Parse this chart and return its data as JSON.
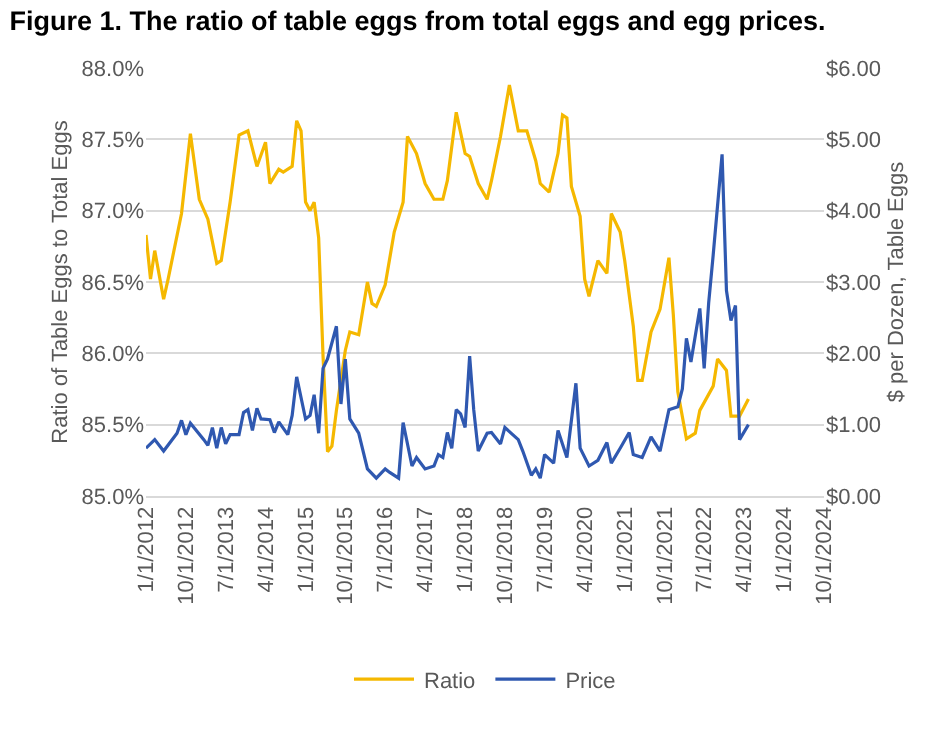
{
  "chart_data": {
    "type": "line",
    "title": "Figure 1. The ratio of table eggs from total eggs and egg prices.",
    "ylabel": "Ratio of Table Eggs to Total Eggs",
    "y2label": "$ per Dozen, Table Eggs",
    "xlim": [
      "2012-01-01",
      "2024-10-01"
    ],
    "xticks": [
      {
        "value": "2012-01-01",
        "label": "1/1/2012"
      },
      {
        "value": "2012-10-01",
        "label": "10/1/2012"
      },
      {
        "value": "2013-07-01",
        "label": "7/1/2013"
      },
      {
        "value": "2014-04-01",
        "label": "4/1/2014"
      },
      {
        "value": "2015-01-01",
        "label": "1/1/2015"
      },
      {
        "value": "2015-10-01",
        "label": "10/1/2015"
      },
      {
        "value": "2016-07-01",
        "label": "7/1/2016"
      },
      {
        "value": "2017-04-01",
        "label": "4/1/2017"
      },
      {
        "value": "2018-01-01",
        "label": "1/1/2018"
      },
      {
        "value": "2018-10-01",
        "label": "10/1/2018"
      },
      {
        "value": "2019-07-01",
        "label": "7/1/2019"
      },
      {
        "value": "2020-04-01",
        "label": "4/1/2020"
      },
      {
        "value": "2021-01-01",
        "label": "1/1/2021"
      },
      {
        "value": "2021-10-01",
        "label": "10/1/2021"
      },
      {
        "value": "2022-07-01",
        "label": "7/1/2022"
      },
      {
        "value": "2023-04-01",
        "label": "4/1/2023"
      },
      {
        "value": "2024-01-01",
        "label": "1/1/2024"
      },
      {
        "value": "2024-10-01",
        "label": "10/1/2024"
      }
    ],
    "ylim": [
      85,
      88
    ],
    "yticks": [
      {
        "value": 85,
        "label": "85.0%"
      },
      {
        "value": 85.5,
        "label": "85.5%"
      },
      {
        "value": 86,
        "label": "86.0%"
      },
      {
        "value": 86.5,
        "label": "86.5%"
      },
      {
        "value": 87,
        "label": "87.0%"
      },
      {
        "value": 87.5,
        "label": "87.5%"
      },
      {
        "value": 88,
        "label": "88.0%"
      }
    ],
    "y2lim": [
      0,
      6
    ],
    "y2ticks": [
      {
        "value": 0,
        "label": "$0.00"
      },
      {
        "value": 1,
        "label": "$1.00"
      },
      {
        "value": 2,
        "label": "$2.00"
      },
      {
        "value": 3,
        "label": "$3.00"
      },
      {
        "value": 4,
        "label": "$4.00"
      },
      {
        "value": 5,
        "label": "$5.00"
      },
      {
        "value": 6,
        "label": "$6.00"
      }
    ],
    "grid": "y",
    "legend": "bottom",
    "marker": "none",
    "line_style": "solid",
    "series": [
      {
        "name": "Ratio",
        "color": "#f5b800",
        "x": [
          "2012-01",
          "2012-02",
          "2012-03",
          "2012-05",
          "2012-06",
          "2012-09",
          "2012-11",
          "2013-01",
          "2013-03",
          "2013-05",
          "2013-06",
          "2013-08",
          "2013-10",
          "2013-12",
          "2014-02",
          "2014-04",
          "2014-05",
          "2014-07",
          "2014-08",
          "2014-10",
          "2014-11",
          "2014-12",
          "2015-01",
          "2015-02",
          "2015-03",
          "2015-04",
          "2015-05",
          "2015-06",
          "2015-07",
          "2015-08",
          "2015-10",
          "2015-11",
          "2016-01",
          "2016-03",
          "2016-04",
          "2016-05",
          "2016-07",
          "2016-09",
          "2016-11",
          "2016-12",
          "2017-02",
          "2017-04",
          "2017-06",
          "2017-08",
          "2017-09",
          "2017-11",
          "2018-01",
          "2018-02",
          "2018-04",
          "2018-06",
          "2018-07",
          "2018-09",
          "2018-11",
          "2019-01",
          "2019-03",
          "2019-05",
          "2019-06",
          "2019-08",
          "2019-10",
          "2019-11",
          "2019-12",
          "2020-01",
          "2020-03",
          "2020-04",
          "2020-05",
          "2020-07",
          "2020-09",
          "2020-10",
          "2020-12",
          "2021-01",
          "2021-03",
          "2021-04",
          "2021-05",
          "2021-07",
          "2021-09",
          "2021-11",
          "2021-12",
          "2022-01",
          "2022-03",
          "2022-05",
          "2022-06",
          "2022-09",
          "2022-10",
          "2022-12",
          "2023-01",
          "2023-03",
          "2023-05"
        ],
        "values": [
          86.83,
          86.52,
          86.72,
          86.38,
          86.52,
          86.98,
          87.54,
          87.08,
          86.94,
          86.63,
          86.65,
          87.06,
          87.53,
          87.56,
          87.31,
          87.48,
          87.19,
          87.29,
          87.27,
          87.31,
          87.63,
          87.56,
          87.06,
          87.0,
          87.06,
          86.81,
          85.98,
          85.31,
          85.35,
          85.6,
          86.02,
          86.15,
          86.13,
          86.5,
          86.35,
          86.33,
          86.48,
          86.85,
          87.06,
          87.52,
          87.4,
          87.19,
          87.08,
          87.08,
          87.21,
          87.69,
          87.4,
          87.38,
          87.19,
          87.08,
          87.21,
          87.52,
          87.88,
          87.56,
          87.56,
          87.35,
          87.19,
          87.13,
          87.4,
          87.67,
          87.65,
          87.17,
          86.96,
          86.52,
          86.4,
          86.65,
          86.56,
          86.98,
          86.85,
          86.65,
          86.19,
          85.81,
          85.81,
          86.15,
          86.31,
          86.67,
          86.27,
          85.73,
          85.4,
          85.44,
          85.6,
          85.77,
          85.96,
          85.88,
          85.56,
          85.56,
          85.68
        ]
      },
      {
        "name": "Price",
        "color": "#2f58b0",
        "axis": "y2",
        "x": [
          "2012-01",
          "2012-03",
          "2012-05",
          "2012-08",
          "2012-09",
          "2012-10",
          "2012-11",
          "2013-02",
          "2013-03",
          "2013-04",
          "2013-05",
          "2013-06",
          "2013-07",
          "2013-08",
          "2013-10",
          "2013-11",
          "2013-12",
          "2014-01",
          "2014-02",
          "2014-03",
          "2014-05",
          "2014-06",
          "2014-07",
          "2014-09",
          "2014-10",
          "2014-11",
          "2015-01",
          "2015-02",
          "2015-03",
          "2015-04",
          "2015-05",
          "2015-06",
          "2015-08",
          "2015-09",
          "2015-10",
          "2015-11",
          "2016-01",
          "2016-03",
          "2016-05",
          "2016-07",
          "2016-08",
          "2016-10",
          "2016-11",
          "2017-01",
          "2017-02",
          "2017-04",
          "2017-06",
          "2017-07",
          "2017-08",
          "2017-09",
          "2017-10",
          "2017-11",
          "2017-12",
          "2018-01",
          "2018-02",
          "2018-03",
          "2018-04",
          "2018-06",
          "2018-07",
          "2018-09",
          "2018-10",
          "2019-01",
          "2019-02",
          "2019-04",
          "2019-05",
          "2019-06",
          "2019-07",
          "2019-09",
          "2019-10",
          "2019-12",
          "2020-02",
          "2020-03",
          "2020-05",
          "2020-07",
          "2020-09",
          "2020-10",
          "2020-12",
          "2021-02",
          "2021-03",
          "2021-05",
          "2021-07",
          "2021-09",
          "2021-11",
          "2022-01",
          "2022-02",
          "2022-03",
          "2022-04",
          "2022-06",
          "2022-07",
          "2022-08",
          "2022-09",
          "2022-11",
          "2022-12",
          "2023-01",
          "2023-02",
          "2023-03",
          "2023-05"
        ],
        "values": [
          0.67,
          0.79,
          0.63,
          0.88,
          1.06,
          0.86,
          1.02,
          0.79,
          0.71,
          0.96,
          0.67,
          0.96,
          0.73,
          0.86,
          0.86,
          1.17,
          1.21,
          0.92,
          1.23,
          1.08,
          1.07,
          0.89,
          1.04,
          0.86,
          1.13,
          1.67,
          1.08,
          1.13,
          1.42,
          0.88,
          1.79,
          1.92,
          2.38,
          1.29,
          1.92,
          1.08,
          0.88,
          0.38,
          0.25,
          0.38,
          0.33,
          0.25,
          1.03,
          0.42,
          0.54,
          0.38,
          0.42,
          0.58,
          0.54,
          0.89,
          0.67,
          1.21,
          1.15,
          0.96,
          1.96,
          1.21,
          0.63,
          0.88,
          0.89,
          0.73,
          0.96,
          0.79,
          0.63,
          0.29,
          0.38,
          0.25,
          0.58,
          0.46,
          0.92,
          0.54,
          1.58,
          0.67,
          0.42,
          0.5,
          0.75,
          0.46,
          0.67,
          0.89,
          0.58,
          0.54,
          0.83,
          0.63,
          1.21,
          1.25,
          1.5,
          2.21,
          1.88,
          2.63,
          1.79,
          2.71,
          3.38,
          4.79,
          2.88,
          2.46,
          2.67,
          0.79,
          1.0
        ]
      }
    ]
  }
}
